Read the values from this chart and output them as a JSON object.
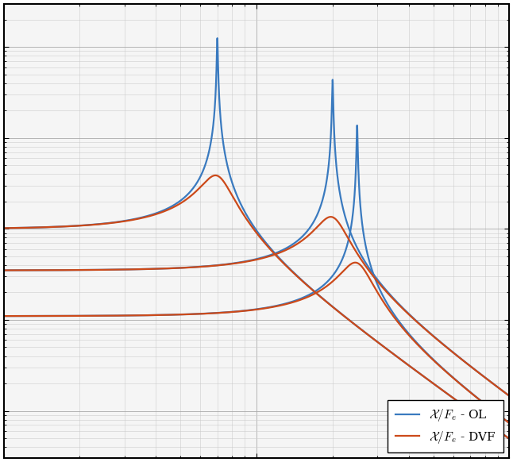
{
  "blue_color": "#3a7abf",
  "orange_color": "#cc4a1a",
  "freq_min": 10,
  "freq_max": 1000,
  "resonances": [
    70,
    200,
    250
  ],
  "static_levels": [
    1e-06,
    3.5e-07,
    1.1e-07
  ],
  "damping_ol": 0.004,
  "damping_dvf": 0.13,
  "line_width": 1.6,
  "ylim": [
    3e-09,
    0.0003
  ],
  "legend_ol": "$\\mathcal{X}/F_e$ - OL",
  "legend_dvf": "$\\mathcal{X}/F_e$ - DVF",
  "bg_color": "#f5f5f5",
  "grid_major_color": "#aaaaaa",
  "grid_minor_color": "#cccccc"
}
